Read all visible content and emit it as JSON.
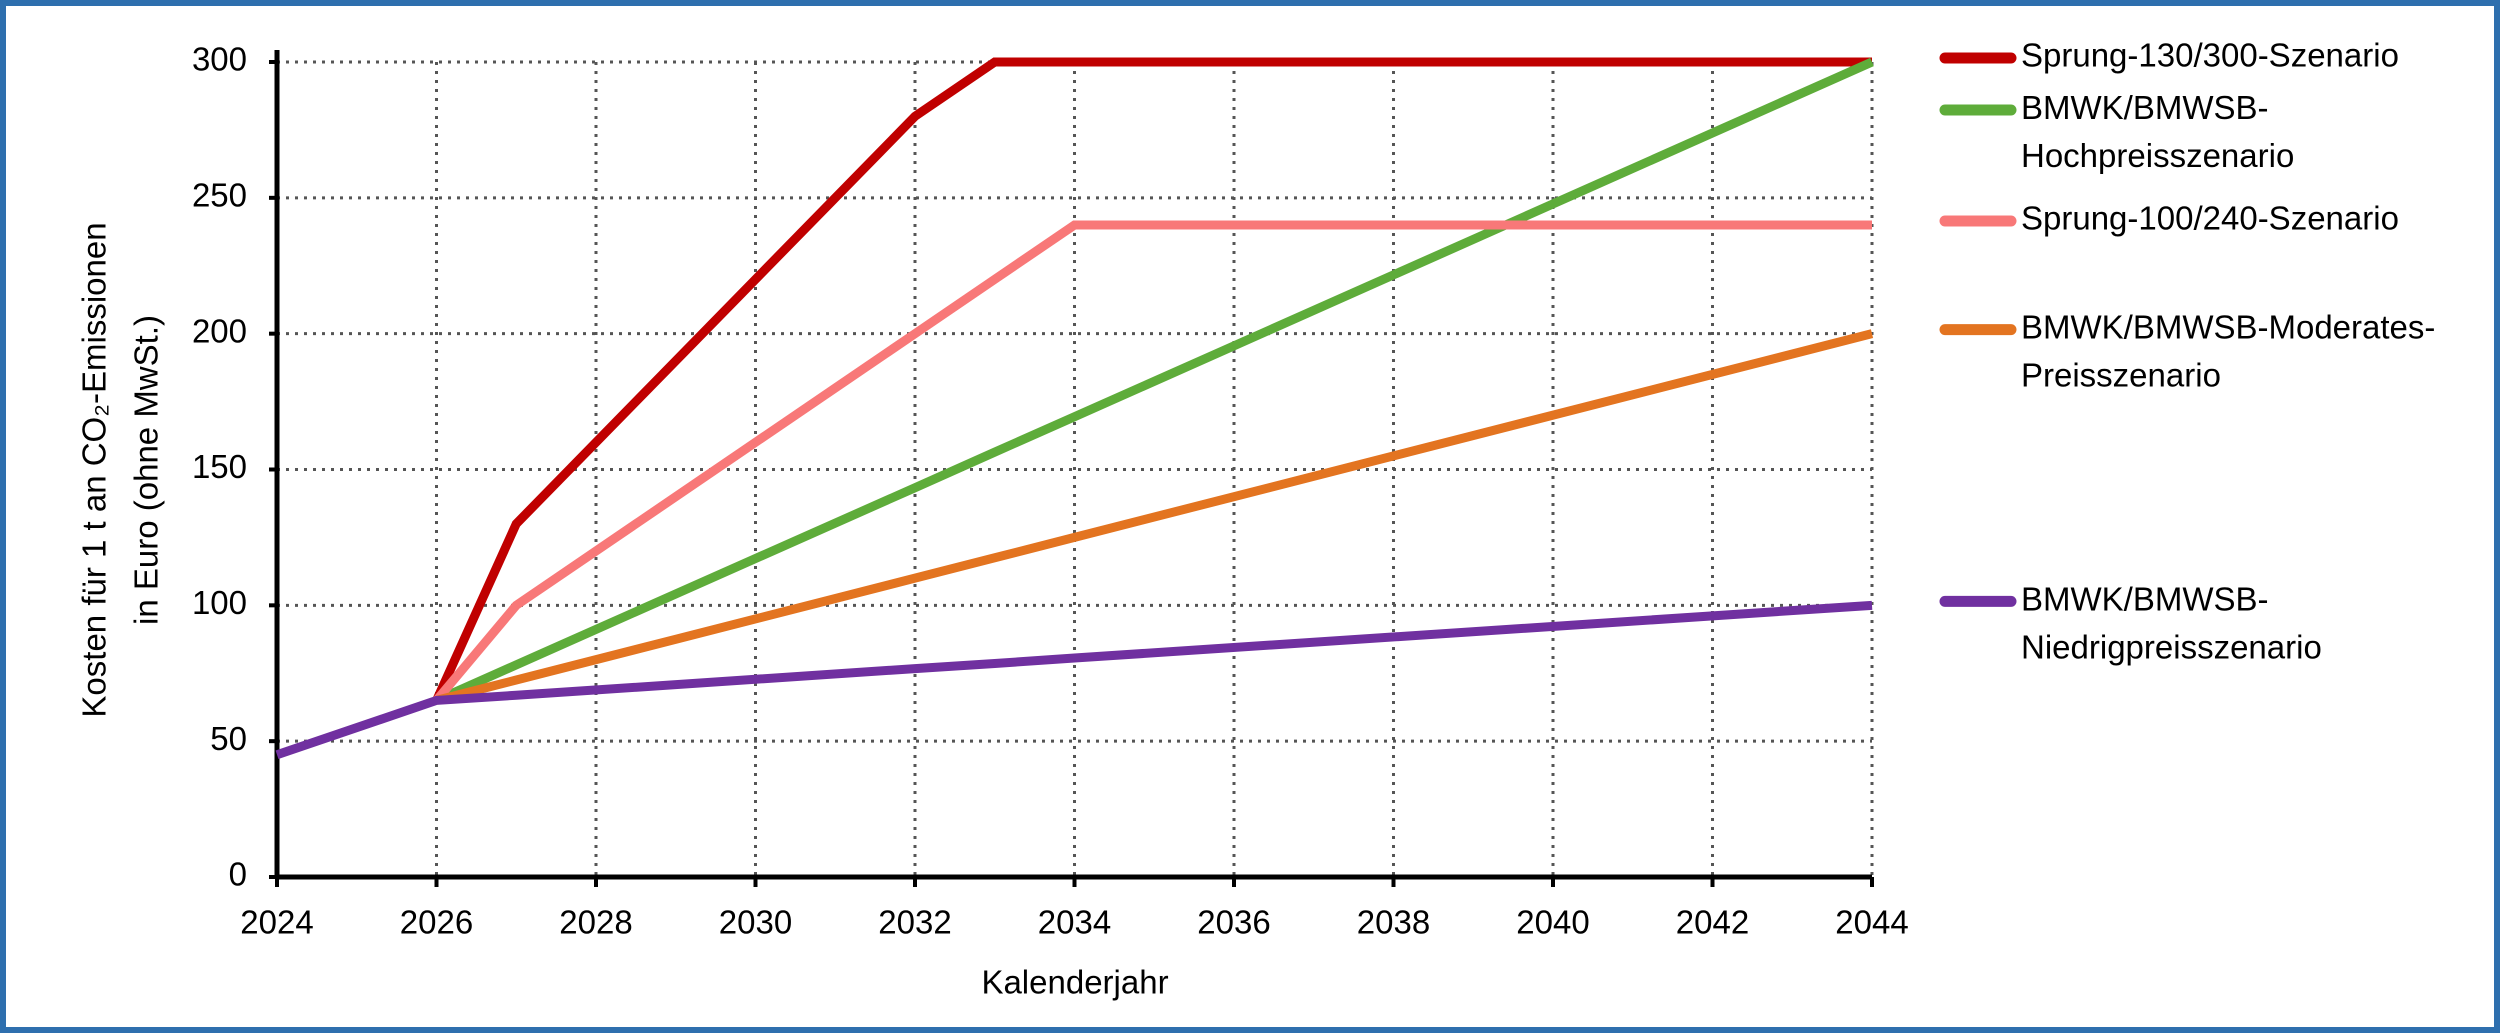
{
  "chart_data": {
    "type": "line",
    "xlabel": "Kalenderjahr",
    "ylabel": [
      "Kosten für 1 t an CO₂-Emissionen",
      "in Euro (ohne MwSt.)"
    ],
    "x": [
      2024,
      2026,
      2027,
      2032,
      2033,
      2034,
      2044
    ],
    "series": [
      {
        "name": "Sprung-130/300-Szenario",
        "color": "#c00000",
        "values": [
          null,
          65,
          130,
          280,
          300,
          300,
          300
        ]
      },
      {
        "name": "BMWK/BMWSB-Hochpreisszenario",
        "color": "#5eac3a",
        "values": [
          null,
          65,
          78.1,
          143.3,
          156.4,
          169.4,
          300
        ]
      },
      {
        "name": "Sprung-100/240-Szenario",
        "color": "#f87878",
        "values": [
          null,
          65,
          100,
          200,
          220,
          240,
          240
        ]
      },
      {
        "name": "BMWK/BMWSB-Moderates-Preisszenario",
        "color": "#e37420",
        "values": [
          null,
          65,
          72.5,
          110,
          117.5,
          125,
          200
        ]
      },
      {
        "name": "BMWK/BMWSB-Niedrigpreisszenario",
        "color": "#7030a0",
        "values": [
          45,
          65,
          66.9,
          76.7,
          78.6,
          80.6,
          100
        ]
      }
    ],
    "xlim": [
      2024,
      2044
    ],
    "xticks": [
      2024,
      2026,
      2028,
      2030,
      2032,
      2034,
      2036,
      2038,
      2040,
      2042,
      2044
    ],
    "ylim": [
      0,
      300
    ],
    "yticks": [
      0,
      50,
      100,
      150,
      200,
      250,
      300
    ],
    "grid": true,
    "legend": "right"
  }
}
